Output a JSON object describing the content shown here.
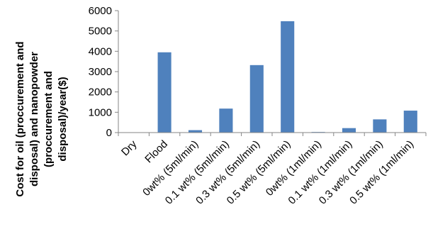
{
  "chart_data": {
    "type": "bar",
    "categories": [
      "Dry",
      "Flood",
      "0wt% (5ml/min)",
      "0.1 wt% (5ml/min)",
      "0.3 wt% (5ml/min)",
      "0.5 wt% (5ml/min)",
      "0wt% (1ml/min)",
      "0.1 wt% (1ml/min)",
      "0.3 wt% (1ml/min)",
      "0.5 wt% (1ml/min)"
    ],
    "values": [
      0,
      3950,
      120,
      1180,
      3320,
      5480,
      30,
      220,
      650,
      1080
    ],
    "ylabel_lines": [
      "Cost for oil (proccurement and",
      "disposal) and nanopowder",
      "(proccurement and",
      "disposal)/year($)"
    ],
    "ylim": [
      0,
      6000
    ],
    "yticks": [
      0,
      1000,
      2000,
      3000,
      4000,
      5000,
      6000
    ],
    "grid": false,
    "bar_color": "#4F81BD",
    "axis_color": "#868686"
  }
}
